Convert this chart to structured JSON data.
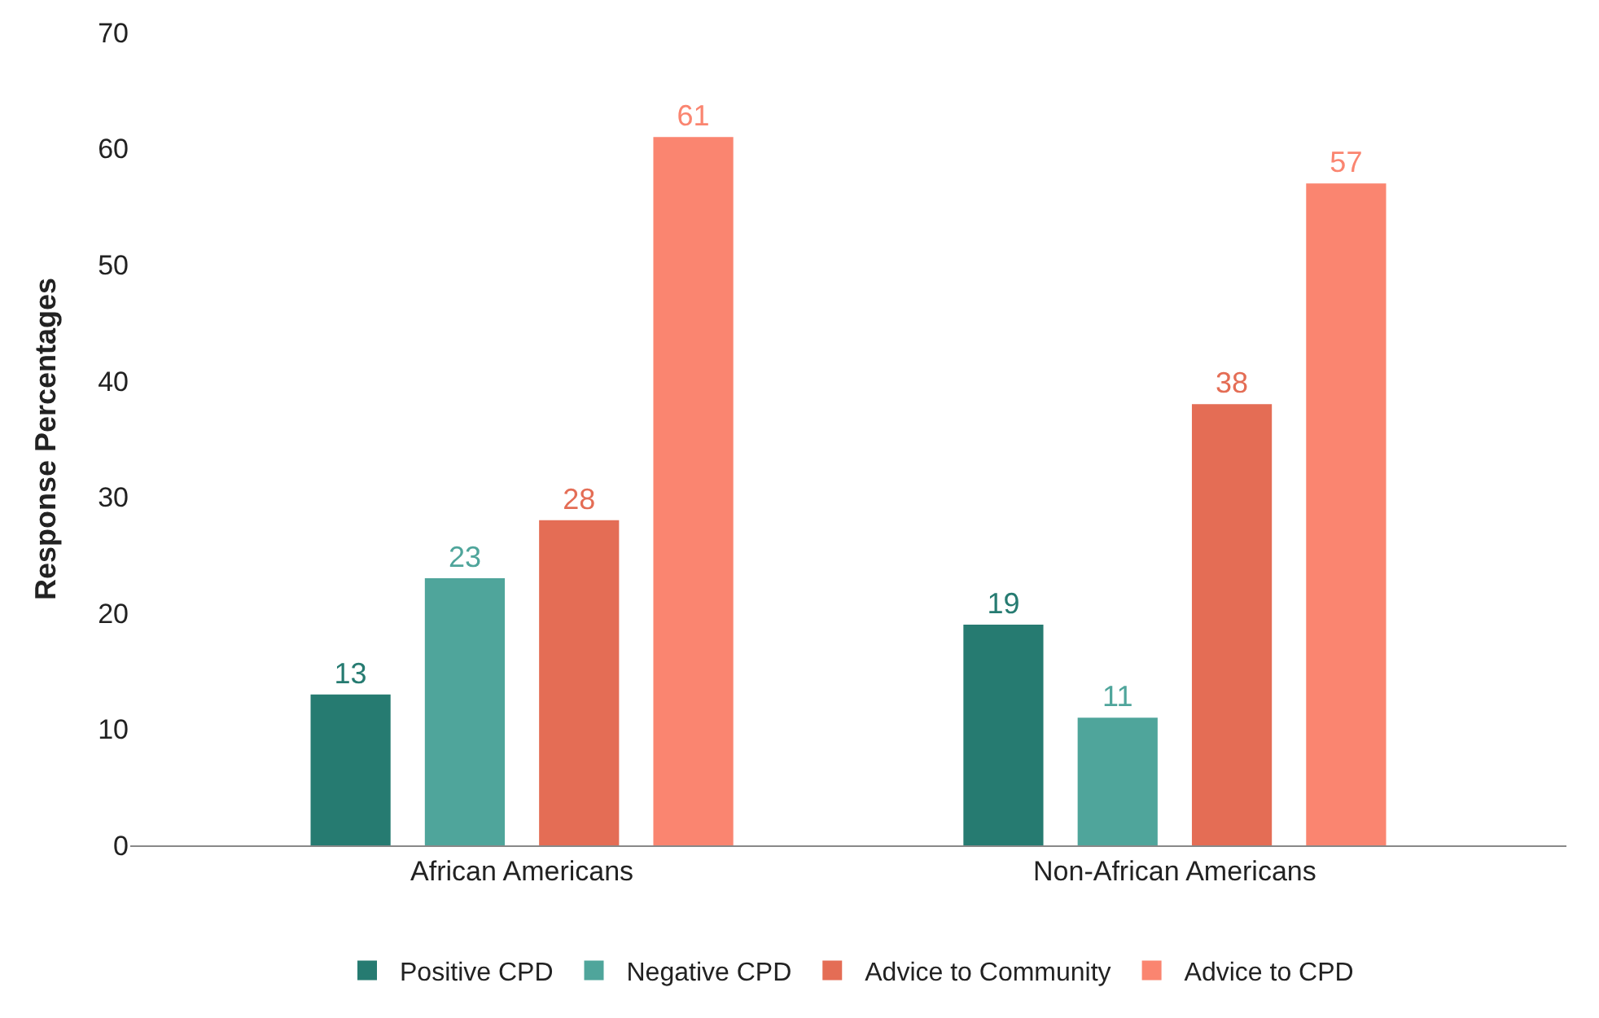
{
  "chart_data": {
    "type": "bar",
    "ylabel": "Response Percentages",
    "categories": [
      "African Americans",
      "Non-African Americans"
    ],
    "series": [
      {
        "name": "Positive CPD",
        "color": "#267b71",
        "values": [
          13,
          19
        ]
      },
      {
        "name": "Negative CPD",
        "color": "#4fa59b",
        "values": [
          23,
          11
        ]
      },
      {
        "name": "Advice to Community",
        "color": "#e46d55",
        "values": [
          28,
          38
        ]
      },
      {
        "name": "Advice to CPD",
        "color": "#fa8570",
        "values": [
          61,
          57
        ]
      }
    ],
    "ylim": [
      0,
      70
    ],
    "yticks": [
      0,
      10,
      20,
      30,
      40,
      50,
      60,
      70
    ],
    "grid": false,
    "legend": "bottom",
    "data_labels": true
  }
}
